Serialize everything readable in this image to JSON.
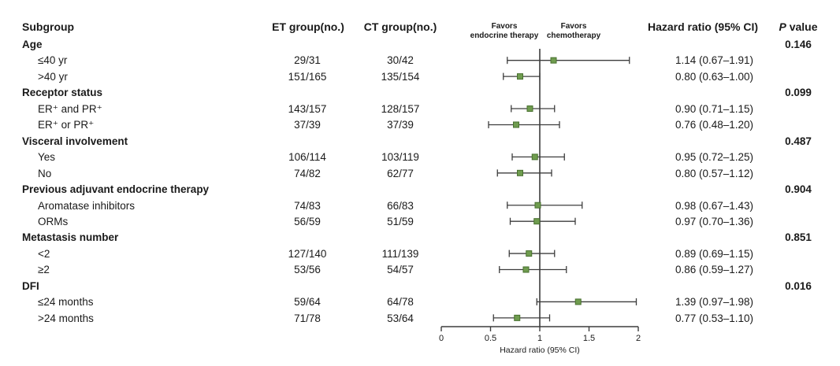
{
  "header": {
    "subgroup": "Subgroup",
    "et_group": "ET group(no.)",
    "ct_group": "CT group(no.)",
    "hazard_ratio": "Hazard ratio (95% CI)",
    "p_label_italic": "P",
    "p_label_rest": " value"
  },
  "colors": {
    "background": "#ffffff",
    "text": "#1a1a1a",
    "line": "#3d3d3d",
    "marker_fill": "#6f9c4f",
    "marker_border": "#48702f"
  },
  "chart_data": {
    "type": "forest",
    "xlabel": "Hazard ratio (95% CI)",
    "axis": {
      "min": 0,
      "max": 2,
      "tick_values": [
        0,
        0.5,
        1,
        1.5,
        2
      ],
      "tick_labels": [
        "0",
        "0.5",
        "1",
        "1.5",
        "2"
      ],
      "reference_line": 1
    },
    "favors": {
      "left_line1": "Favors",
      "left_line2": "endocrine therapy",
      "right_line1": "Favors",
      "right_line2": "chemotherapy"
    },
    "rows": [
      {
        "type": "category",
        "label": "Age",
        "p": "0.146"
      },
      {
        "type": "item",
        "label": "≤40 yr",
        "et": "29/31",
        "ct": "30/42",
        "hr": 1.14,
        "ci_low": 0.67,
        "ci_high": 1.91,
        "hr_text": "1.14 (0.67–1.91)"
      },
      {
        "type": "item",
        "label": ">40 yr",
        "et": "151/165",
        "ct": "135/154",
        "hr": 0.8,
        "ci_low": 0.63,
        "ci_high": 1.0,
        "hr_text": "0.80 (0.63–1.00)"
      },
      {
        "type": "category",
        "label": "Receptor status",
        "p": "0.099"
      },
      {
        "type": "item",
        "label": "ER⁺ and PR⁺",
        "et": "143/157",
        "ct": "128/157",
        "hr": 0.9,
        "ci_low": 0.71,
        "ci_high": 1.15,
        "hr_text": "0.90 (0.71–1.15)"
      },
      {
        "type": "item",
        "label": "ER⁺ or PR⁺",
        "et": "37/39",
        "ct": "37/39",
        "hr": 0.76,
        "ci_low": 0.48,
        "ci_high": 1.2,
        "hr_text": "0.76 (0.48–1.20)"
      },
      {
        "type": "category",
        "label": "Visceral involvement",
        "p": "0.487"
      },
      {
        "type": "item",
        "label": "Yes",
        "et": "106/114",
        "ct": "103/119",
        "hr": 0.95,
        "ci_low": 0.72,
        "ci_high": 1.25,
        "hr_text": "0.95 (0.72–1.25)"
      },
      {
        "type": "item",
        "label": "No",
        "et": "74/82",
        "ct": "62/77",
        "hr": 0.8,
        "ci_low": 0.57,
        "ci_high": 1.12,
        "hr_text": "0.80 (0.57–1.12)"
      },
      {
        "type": "category",
        "label": "Previous adjuvant endocrine therapy",
        "p": "0.904"
      },
      {
        "type": "item",
        "label": "Aromatase inhibitors",
        "et": "74/83",
        "ct": "66/83",
        "hr": 0.98,
        "ci_low": 0.67,
        "ci_high": 1.43,
        "hr_text": "0.98 (0.67–1.43)"
      },
      {
        "type": "item",
        "label": "ORMs",
        "et": "56/59",
        "ct": "51/59",
        "hr": 0.97,
        "ci_low": 0.7,
        "ci_high": 1.36,
        "hr_text": "0.97 (0.70–1.36)"
      },
      {
        "type": "category",
        "label": "Metastasis number",
        "p": "0.851"
      },
      {
        "type": "item",
        "label": "<2",
        "et": "127/140",
        "ct": "111/139",
        "hr": 0.89,
        "ci_low": 0.69,
        "ci_high": 1.15,
        "hr_text": "0.89 (0.69–1.15)"
      },
      {
        "type": "item",
        "label": "≥2",
        "et": "53/56",
        "ct": "54/57",
        "hr": 0.86,
        "ci_low": 0.59,
        "ci_high": 1.27,
        "hr_text": "0.86 (0.59–1.27)"
      },
      {
        "type": "category",
        "label": "DFI",
        "p": "0.016"
      },
      {
        "type": "item",
        "label": "≤24 months",
        "et": "59/64",
        "ct": "64/78",
        "hr": 1.39,
        "ci_low": 0.97,
        "ci_high": 1.98,
        "hr_text": "1.39 (0.97–1.98)"
      },
      {
        "type": "item",
        "label": ">24 months",
        "et": "71/78",
        "ct": "53/64",
        "hr": 0.77,
        "ci_low": 0.53,
        "ci_high": 1.1,
        "hr_text": "0.77 (0.53–1.10)"
      }
    ]
  }
}
